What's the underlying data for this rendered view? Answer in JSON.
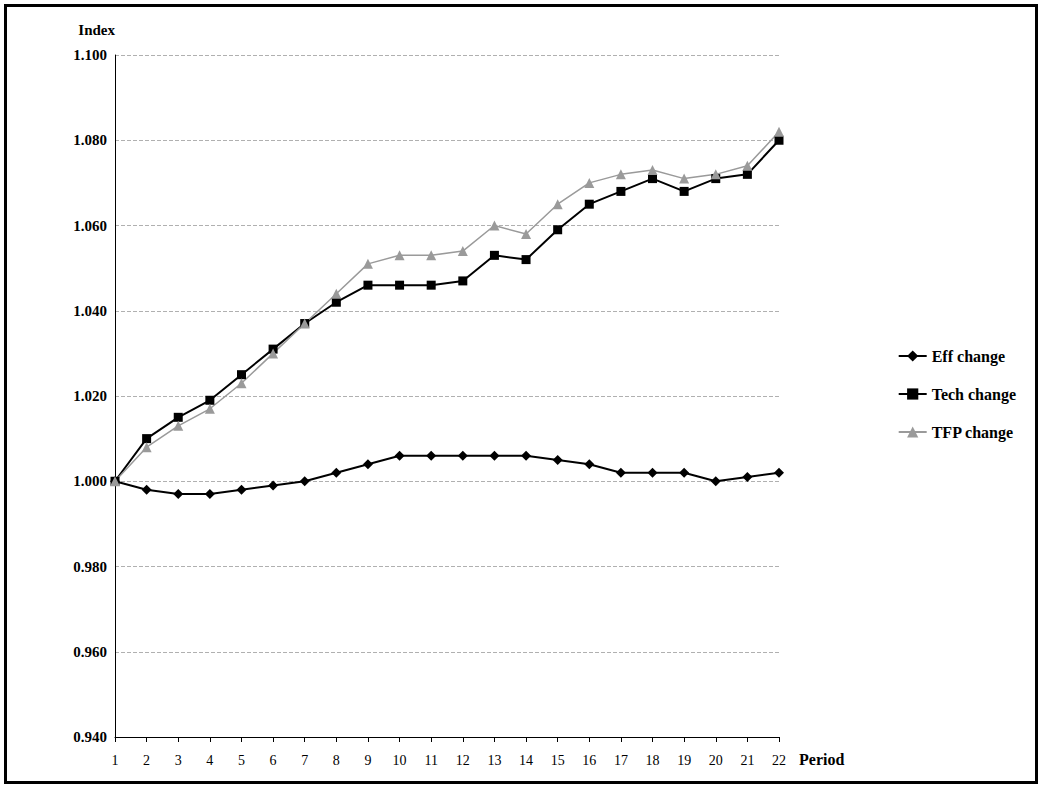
{
  "chart_data": {
    "type": "line",
    "x_label": "Period",
    "y_label": "Index",
    "categories": [
      "1",
      "2",
      "3",
      "4",
      "5",
      "6",
      "7",
      "8",
      "9",
      "10",
      "11",
      "12",
      "13",
      "14",
      "15",
      "16",
      "17",
      "18",
      "19",
      "20",
      "21",
      "22"
    ],
    "series": [
      {
        "name": "Eff change",
        "color": "#000000",
        "marker": "diamond",
        "line_style": "solid",
        "values": [
          1.0,
          0.998,
          0.997,
          0.997,
          0.998,
          0.999,
          1.0,
          1.002,
          1.004,
          1.006,
          1.006,
          1.006,
          1.006,
          1.006,
          1.005,
          1.004,
          1.002,
          1.002,
          1.002,
          1.0,
          1.001,
          1.002
        ]
      },
      {
        "name": "Tech change",
        "color": "#000000",
        "marker": "square",
        "line_style": "solid",
        "values": [
          1.0,
          1.01,
          1.015,
          1.019,
          1.025,
          1.031,
          1.037,
          1.042,
          1.046,
          1.046,
          1.046,
          1.047,
          1.053,
          1.052,
          1.059,
          1.065,
          1.068,
          1.071,
          1.068,
          1.071,
          1.072,
          1.08
        ]
      },
      {
        "name": "TFP change",
        "color": "#9a9a9a",
        "marker": "triangle",
        "line_style": "solid",
        "values": [
          1.0,
          1.008,
          1.013,
          1.017,
          1.023,
          1.03,
          1.037,
          1.044,
          1.051,
          1.053,
          1.053,
          1.054,
          1.06,
          1.058,
          1.065,
          1.07,
          1.072,
          1.073,
          1.071,
          1.072,
          1.074,
          1.082
        ]
      }
    ],
    "ylim": [
      0.94,
      1.1
    ],
    "yticks": [
      {
        "value": 0.94,
        "label": "0.940"
      },
      {
        "value": 0.96,
        "label": "0.960"
      },
      {
        "value": 0.98,
        "label": "0.980"
      },
      {
        "value": 1.0,
        "label": "1.000"
      },
      {
        "value": 1.02,
        "label": "1.020"
      },
      {
        "value": 1.04,
        "label": "1.040"
      },
      {
        "value": 1.06,
        "label": "1.060"
      },
      {
        "value": 1.08,
        "label": "1.080"
      },
      {
        "value": 1.1,
        "label": "1.100"
      }
    ],
    "grid": true,
    "legend": "right"
  }
}
